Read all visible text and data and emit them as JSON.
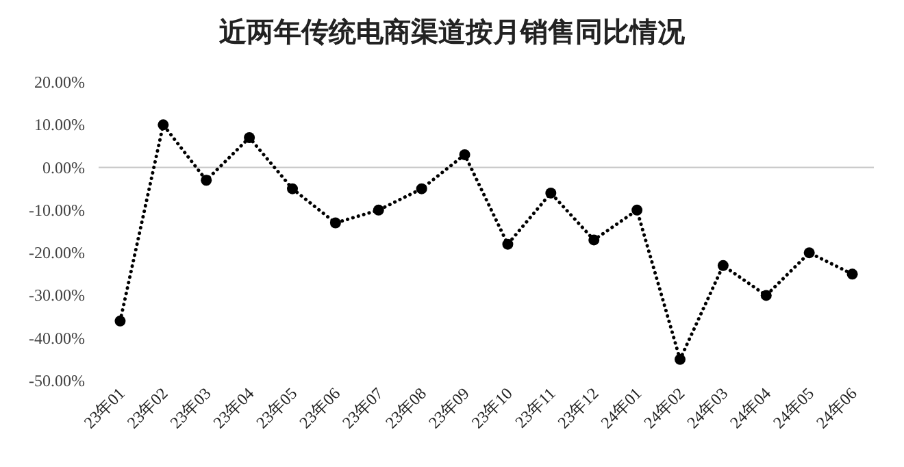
{
  "chart_data": {
    "type": "line",
    "title": "近两年传统电商渠道按月销售同比情况",
    "categories": [
      "23年01",
      "23年02",
      "23年03",
      "23年04",
      "23年05",
      "23年06",
      "23年07",
      "23年08",
      "23年09",
      "23年10",
      "23年11",
      "23年12",
      "24年01",
      "24年02",
      "24年03",
      "24年04",
      "24年05",
      "24年06"
    ],
    "series": [
      {
        "color": "#000000",
        "values": [
          -36,
          10,
          -3,
          7,
          -5,
          -13,
          -10,
          -5,
          3,
          -18,
          -6,
          -17,
          -10,
          -45,
          -23,
          -30,
          -20,
          -25
        ]
      }
    ],
    "ylim": [
      -50,
      20
    ],
    "yticks": [
      {
        "value": -50,
        "label": "-50.00%"
      },
      {
        "value": -40,
        "label": "-40.00%"
      },
      {
        "value": -30,
        "label": "-30.00%"
      },
      {
        "value": -20,
        "label": "-20.00%"
      },
      {
        "value": -10,
        "label": "-10.00%"
      },
      {
        "value": 0,
        "label": "0.00%"
      },
      {
        "value": 10,
        "label": "10.00%"
      },
      {
        "value": 20,
        "label": "20.00%"
      }
    ],
    "ref_lines": [
      {
        "axis": "y",
        "value": 0,
        "color": "#c8c8c8"
      }
    ],
    "marker": "circle",
    "line_style": "dotted"
  }
}
